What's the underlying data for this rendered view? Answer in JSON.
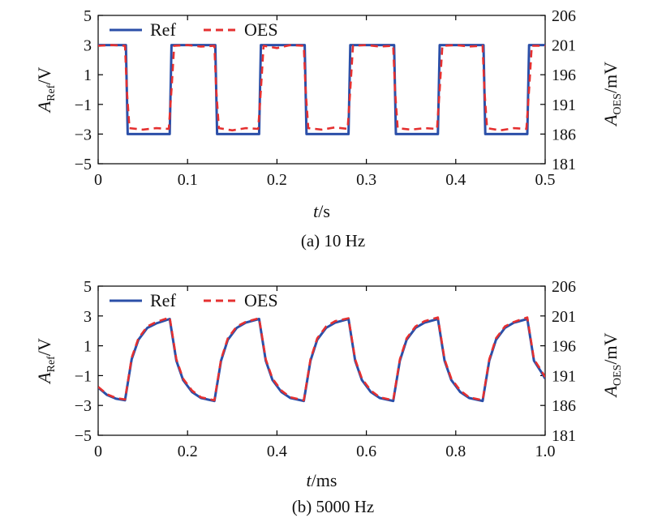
{
  "chart_data": [
    {
      "type": "line",
      "caption": "(a) 10 Hz",
      "xlabel": {
        "italic": "t",
        "rest": "/s"
      },
      "ylabel_left": {
        "italic": "A",
        "sub": "Ref",
        "rest": "/V"
      },
      "ylabel_right": {
        "italic": "A",
        "sub": "OES",
        "rest": "/mV"
      },
      "xlim": [
        0,
        0.5
      ],
      "ylim_left": [
        -5,
        5
      ],
      "ylim_right": [
        181,
        206
      ],
      "x_ticks": [
        "0",
        "0.1",
        "0.2",
        "0.3",
        "0.4",
        "0.5"
      ],
      "y_ticks_left": [
        "5",
        "3",
        "1",
        "−1",
        "−3",
        "−5"
      ],
      "y_ticks_right": [
        "206",
        "201",
        "196",
        "191",
        "186",
        "181"
      ],
      "legend": {
        "placement": "top-left",
        "entries": [
          "Ref",
          "OES"
        ]
      },
      "grid": false,
      "series": [
        {
          "name": "Ref",
          "color": "#2b4fa8",
          "style": "solid",
          "x": [
            0,
            0.031,
            0.033,
            0.08,
            0.082,
            0.131,
            0.133,
            0.18,
            0.182,
            0.231,
            0.233,
            0.28,
            0.282,
            0.331,
            0.333,
            0.38,
            0.382,
            0.431,
            0.433,
            0.48,
            0.482,
            0.5
          ],
          "y": [
            3,
            3,
            -3,
            -3,
            3,
            3,
            -3,
            -3,
            3,
            3,
            -3,
            -3,
            3,
            3,
            -3,
            -3,
            3,
            3,
            -3,
            -3,
            3,
            3
          ]
        },
        {
          "name": "OES",
          "color": "#e53030",
          "style": "dashed",
          "x": [
            0,
            0.015,
            0.03,
            0.032,
            0.035,
            0.05,
            0.065,
            0.079,
            0.082,
            0.085,
            0.1,
            0.115,
            0.13,
            0.132,
            0.135,
            0.15,
            0.165,
            0.179,
            0.182,
            0.185,
            0.2,
            0.215,
            0.23,
            0.232,
            0.235,
            0.25,
            0.265,
            0.279,
            0.282,
            0.285,
            0.3,
            0.315,
            0.33,
            0.332,
            0.335,
            0.35,
            0.365,
            0.379,
            0.382,
            0.385,
            0.4,
            0.415,
            0.43,
            0.432,
            0.435,
            0.45,
            0.465,
            0.479,
            0.482,
            0.485,
            0.5
          ],
          "y": [
            2.95,
            3.0,
            2.95,
            0,
            -2.6,
            -2.7,
            -2.6,
            -2.65,
            0,
            2.95,
            3.0,
            2.9,
            2.95,
            0,
            -2.6,
            -2.75,
            -2.6,
            -2.65,
            0,
            2.95,
            2.8,
            3.0,
            2.95,
            0,
            -2.6,
            -2.7,
            -2.55,
            -2.65,
            0,
            2.95,
            3.0,
            2.9,
            2.95,
            0,
            -2.6,
            -2.7,
            -2.6,
            -2.65,
            0,
            2.95,
            3.0,
            2.9,
            2.95,
            0,
            -2.6,
            -2.75,
            -2.6,
            -2.65,
            0,
            2.95,
            2.95
          ]
        }
      ]
    },
    {
      "type": "line",
      "caption": "(b) 5000 Hz",
      "xlabel": {
        "italic": "t",
        "rest": "/ms"
      },
      "ylabel_left": {
        "italic": "A",
        "sub": "Ref",
        "rest": "/V"
      },
      "ylabel_right": {
        "italic": "A",
        "sub": "OES",
        "rest": "/mV"
      },
      "xlim": [
        0,
        1.0
      ],
      "ylim_left": [
        -5,
        5
      ],
      "ylim_right": [
        181,
        206
      ],
      "x_ticks": [
        "0",
        "0.2",
        "0.4",
        "0.6",
        "0.8",
        "1.0"
      ],
      "y_ticks_left": [
        "5",
        "3",
        "1",
        "−1",
        "−3",
        "−5"
      ],
      "y_ticks_right": [
        "206",
        "201",
        "196",
        "191",
        "186",
        "181"
      ],
      "legend": {
        "placement": "top-left",
        "entries": [
          "Ref",
          "OES"
        ]
      },
      "grid": false,
      "series": [
        {
          "name": "Ref",
          "color": "#2b4fa8",
          "style": "solid",
          "x": [
            0,
            0.02,
            0.04,
            0.06,
            0.075,
            0.09,
            0.11,
            0.13,
            0.16,
            0.175,
            0.19,
            0.21,
            0.23,
            0.26,
            0.275,
            0.29,
            0.31,
            0.33,
            0.36,
            0.375,
            0.39,
            0.41,
            0.43,
            0.46,
            0.475,
            0.49,
            0.51,
            0.53,
            0.56,
            0.575,
            0.59,
            0.61,
            0.63,
            0.66,
            0.675,
            0.69,
            0.71,
            0.73,
            0.76,
            0.775,
            0.79,
            0.81,
            0.83,
            0.86,
            0.875,
            0.89,
            0.91,
            0.93,
            0.96,
            0.975,
            0.99,
            1.0
          ],
          "y": [
            -1.8,
            -2.3,
            -2.55,
            -2.65,
            0.1,
            1.4,
            2.2,
            2.5,
            2.8,
            0.0,
            -1.3,
            -2.1,
            -2.5,
            -2.7,
            0.0,
            1.4,
            2.2,
            2.55,
            2.8,
            0.0,
            -1.3,
            -2.1,
            -2.5,
            -2.7,
            0.0,
            1.4,
            2.2,
            2.55,
            2.8,
            0.0,
            -1.3,
            -2.1,
            -2.5,
            -2.7,
            0.0,
            1.4,
            2.2,
            2.55,
            2.8,
            0.0,
            -1.3,
            -2.1,
            -2.5,
            -2.7,
            0.0,
            1.4,
            2.2,
            2.55,
            2.8,
            0.0,
            -0.7,
            -1.2
          ]
        },
        {
          "name": "OES",
          "color": "#e53030",
          "style": "dashed",
          "x": [
            0,
            0.02,
            0.04,
            0.06,
            0.075,
            0.09,
            0.11,
            0.13,
            0.16,
            0.175,
            0.19,
            0.21,
            0.23,
            0.26,
            0.275,
            0.29,
            0.31,
            0.33,
            0.36,
            0.375,
            0.39,
            0.41,
            0.43,
            0.46,
            0.475,
            0.49,
            0.51,
            0.53,
            0.56,
            0.575,
            0.59,
            0.61,
            0.63,
            0.66,
            0.675,
            0.69,
            0.71,
            0.73,
            0.76,
            0.775,
            0.79,
            0.81,
            0.83,
            0.86,
            0.875,
            0.89,
            0.91,
            0.93,
            0.96,
            0.975,
            0.99,
            1.0
          ],
          "y": [
            -1.75,
            -2.25,
            -2.5,
            -2.6,
            0.2,
            1.5,
            2.3,
            2.6,
            2.9,
            0.1,
            -1.2,
            -2.0,
            -2.45,
            -2.65,
            0.1,
            1.5,
            2.3,
            2.6,
            2.85,
            0.1,
            -1.2,
            -2.0,
            -2.45,
            -2.65,
            0.1,
            1.5,
            2.3,
            2.65,
            2.85,
            0.1,
            -1.2,
            -2.0,
            -2.45,
            -2.65,
            0.1,
            1.5,
            2.3,
            2.65,
            2.9,
            0.1,
            -1.2,
            -2.0,
            -2.45,
            -2.65,
            0.1,
            1.5,
            2.3,
            2.6,
            2.9,
            0.1,
            -0.6,
            -1.1
          ]
        }
      ]
    }
  ]
}
